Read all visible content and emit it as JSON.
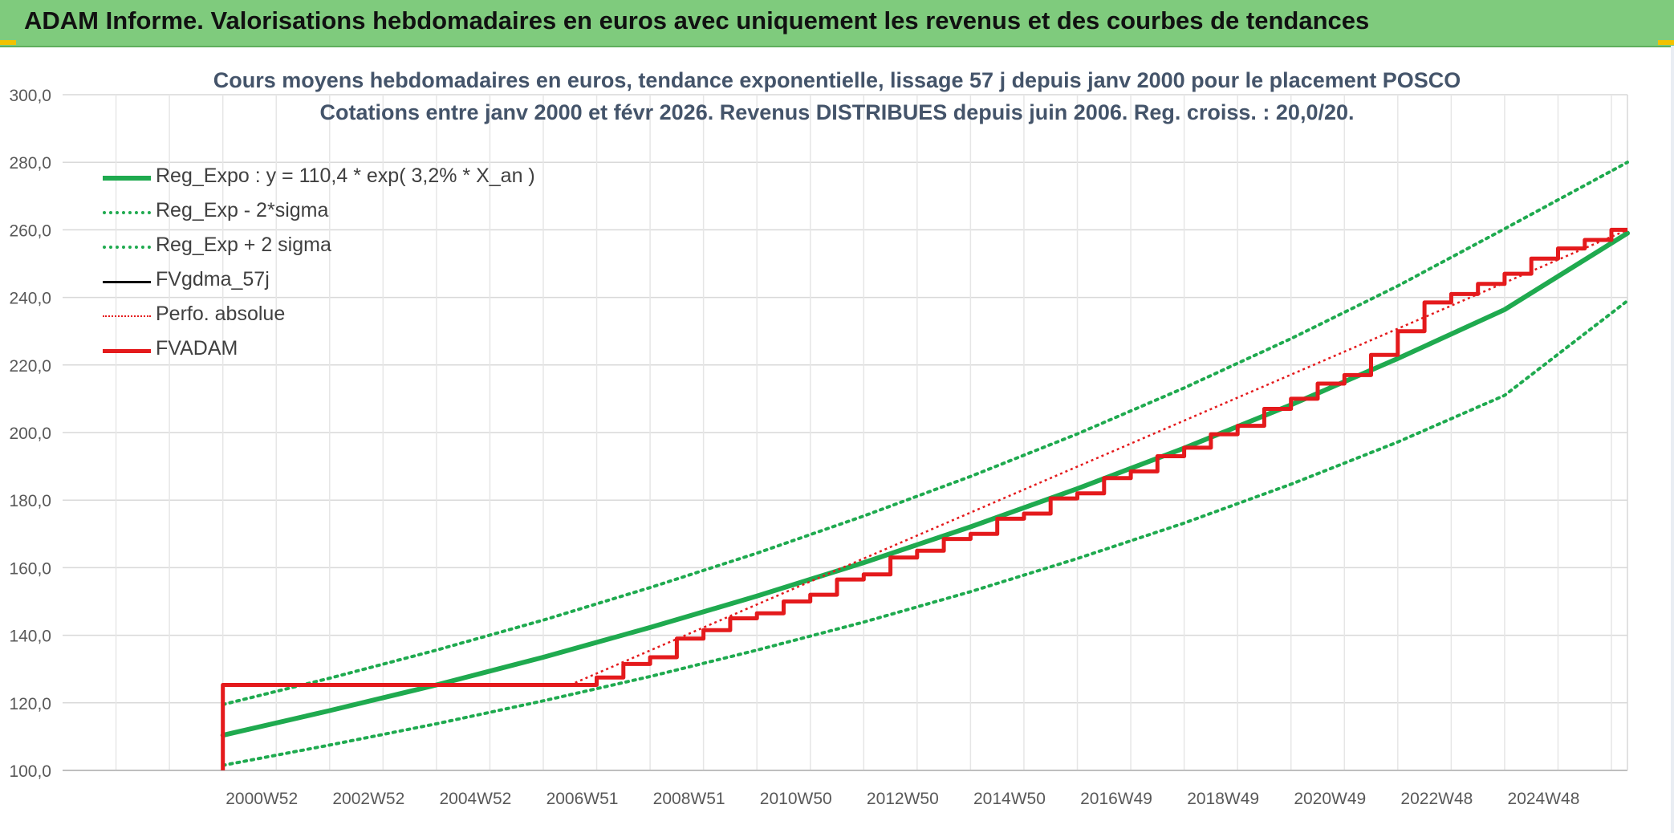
{
  "banner": {
    "title": "ADAM Informe. Valorisations hebdomadaires en euros avec uniquement les revenus et des courbes de tendances"
  },
  "chart_data": {
    "type": "line",
    "title": "Cours moyens hebdomadaires en euros, tendance exponentielle, lissage 57 j depuis janv 2000 pour le placement POSCO",
    "subtitle": "Cotations entre janv 2000 et févr 2026. Revenus DISTRIBUES depuis juin 2006. Reg. croiss. : 20,0/20.",
    "xlabel": "",
    "ylabel": "",
    "ylim": [
      100,
      300
    ],
    "xlim": [
      1997.0,
      2026.3
    ],
    "y_ticks": [
      "100,0",
      "120,0",
      "140,0",
      "160,0",
      "180,0",
      "200,0",
      "220,0",
      "240,0",
      "260,0",
      "280,0",
      "300,0"
    ],
    "x_ticks": [
      {
        "label": "2000W52",
        "x": 2001.0
      },
      {
        "label": "2002W52",
        "x": 2003.0
      },
      {
        "label": "2004W52",
        "x": 2005.0
      },
      {
        "label": "2006W51",
        "x": 2007.0
      },
      {
        "label": "2008W51",
        "x": 2009.0
      },
      {
        "label": "2010W50",
        "x": 2011.0
      },
      {
        "label": "2012W50",
        "x": 2013.0
      },
      {
        "label": "2014W50",
        "x": 2015.0
      },
      {
        "label": "2016W49",
        "x": 2017.0
      },
      {
        "label": "2018W49",
        "x": 2019.0
      },
      {
        "label": "2020W49",
        "x": 2021.0
      },
      {
        "label": "2022W48",
        "x": 2023.0
      },
      {
        "label": "2024W48",
        "x": 2025.0
      }
    ],
    "grid": true,
    "legend_position": "top-left",
    "series": [
      {
        "name": "Reg_Expo : y = 110,4 * exp( 3,2% *  X_an )",
        "color": "#1faa4f",
        "style": "solid",
        "points": [
          [
            2000.0,
            110.4
          ],
          [
            2002.0,
            117.7
          ],
          [
            2004.0,
            125.3
          ],
          [
            2006.0,
            133.5
          ],
          [
            2008.0,
            142.3
          ],
          [
            2010.0,
            151.6
          ],
          [
            2012.0,
            161.5
          ],
          [
            2014.0,
            172.1
          ],
          [
            2016.0,
            183.4
          ],
          [
            2018.0,
            195.4
          ],
          [
            2020.0,
            208.2
          ],
          [
            2022.0,
            221.9
          ],
          [
            2024.0,
            236.4
          ],
          [
            2026.3,
            259.0
          ]
        ]
      },
      {
        "name": "Reg_Exp - 2*sigma",
        "color": "#1faa4f",
        "style": "dotted",
        "points": [
          [
            2000.0,
            101.5
          ],
          [
            2002.0,
            107.5
          ],
          [
            2004.0,
            113.8
          ],
          [
            2006.0,
            120.6
          ],
          [
            2008.0,
            127.8
          ],
          [
            2010.0,
            135.6
          ],
          [
            2012.0,
            143.9
          ],
          [
            2014.0,
            152.9
          ],
          [
            2016.0,
            162.7
          ],
          [
            2018.0,
            173.2
          ],
          [
            2020.0,
            184.7
          ],
          [
            2022.0,
            197.2
          ],
          [
            2024.0,
            211.0
          ],
          [
            2026.3,
            239.0
          ]
        ]
      },
      {
        "name": "Reg_Exp + 2 sigma",
        "color": "#1faa4f",
        "style": "dotted",
        "points": [
          [
            2000.0,
            119.5
          ],
          [
            2002.0,
            127.3
          ],
          [
            2004.0,
            135.6
          ],
          [
            2006.0,
            144.5
          ],
          [
            2008.0,
            154.1
          ],
          [
            2010.0,
            164.3
          ],
          [
            2012.0,
            175.3
          ],
          [
            2014.0,
            187.0
          ],
          [
            2016.0,
            199.6
          ],
          [
            2018.0,
            213.2
          ],
          [
            2020.0,
            227.8
          ],
          [
            2022.0,
            243.4
          ],
          [
            2024.0,
            260.3
          ],
          [
            2026.3,
            280.0
          ]
        ]
      },
      {
        "name": "FVgdma_57j",
        "color": "#000000",
        "style": "solid",
        "points": [
          [
            2000.0,
            100.0
          ],
          [
            2000.0,
            125.3
          ],
          [
            2006.5,
            125.3
          ],
          [
            2007.0,
            127.5
          ],
          [
            2007.5,
            131.5
          ],
          [
            2008.0,
            133.5
          ],
          [
            2008.5,
            139.0
          ],
          [
            2009.0,
            141.5
          ],
          [
            2009.5,
            145.0
          ],
          [
            2010.0,
            146.5
          ],
          [
            2010.5,
            150.0
          ],
          [
            2011.0,
            152.0
          ],
          [
            2011.5,
            156.5
          ],
          [
            2012.0,
            158.0
          ],
          [
            2012.5,
            163.0
          ],
          [
            2013.0,
            165.0
          ],
          [
            2013.5,
            168.5
          ],
          [
            2014.0,
            170.0
          ],
          [
            2014.5,
            174.5
          ],
          [
            2015.0,
            176.0
          ],
          [
            2015.5,
            180.5
          ],
          [
            2016.0,
            182.0
          ],
          [
            2016.5,
            186.5
          ],
          [
            2017.0,
            188.5
          ],
          [
            2017.5,
            193.0
          ],
          [
            2018.0,
            195.5
          ],
          [
            2018.5,
            199.5
          ],
          [
            2019.0,
            202.0
          ],
          [
            2019.5,
            207.0
          ],
          [
            2020.0,
            210.0
          ],
          [
            2020.5,
            214.5
          ],
          [
            2021.0,
            217.0
          ],
          [
            2021.5,
            223.0
          ],
          [
            2022.0,
            230.0
          ],
          [
            2022.5,
            238.5
          ],
          [
            2023.0,
            241.0
          ],
          [
            2023.5,
            244.0
          ],
          [
            2024.0,
            247.0
          ],
          [
            2024.5,
            251.5
          ],
          [
            2025.0,
            254.5
          ],
          [
            2025.5,
            257.0
          ],
          [
            2026.0,
            260.0
          ],
          [
            2026.3,
            260.0
          ]
        ]
      },
      {
        "name": "Perfo. absolue",
        "color": "#e41a1c",
        "style": "dotted",
        "points": [
          [
            2000.0,
            100.0
          ],
          [
            2000.0,
            125.3
          ],
          [
            2006.5,
            125.3
          ],
          [
            2026.3,
            260.0
          ]
        ]
      },
      {
        "name": "FVADAM",
        "color": "#e41a1c",
        "style": "solid",
        "points": [
          [
            2000.0,
            100.0
          ],
          [
            2000.0,
            125.3
          ],
          [
            2006.5,
            125.3
          ],
          [
            2007.0,
            127.5
          ],
          [
            2007.5,
            131.5
          ],
          [
            2008.0,
            133.5
          ],
          [
            2008.5,
            139.0
          ],
          [
            2009.0,
            141.5
          ],
          [
            2009.5,
            145.0
          ],
          [
            2010.0,
            146.5
          ],
          [
            2010.5,
            150.0
          ],
          [
            2011.0,
            152.0
          ],
          [
            2011.5,
            156.5
          ],
          [
            2012.0,
            158.0
          ],
          [
            2012.5,
            163.0
          ],
          [
            2013.0,
            165.0
          ],
          [
            2013.5,
            168.5
          ],
          [
            2014.0,
            170.0
          ],
          [
            2014.5,
            174.5
          ],
          [
            2015.0,
            176.0
          ],
          [
            2015.5,
            180.5
          ],
          [
            2016.0,
            182.0
          ],
          [
            2016.5,
            186.5
          ],
          [
            2017.0,
            188.5
          ],
          [
            2017.5,
            193.0
          ],
          [
            2018.0,
            195.5
          ],
          [
            2018.5,
            199.5
          ],
          [
            2019.0,
            202.0
          ],
          [
            2019.5,
            207.0
          ],
          [
            2020.0,
            210.0
          ],
          [
            2020.5,
            214.5
          ],
          [
            2021.0,
            217.0
          ],
          [
            2021.5,
            223.0
          ],
          [
            2022.0,
            230.0
          ],
          [
            2022.5,
            238.5
          ],
          [
            2023.0,
            241.0
          ],
          [
            2023.5,
            244.0
          ],
          [
            2024.0,
            247.0
          ],
          [
            2024.5,
            251.5
          ],
          [
            2025.0,
            254.5
          ],
          [
            2025.5,
            257.0
          ],
          [
            2026.0,
            260.0
          ],
          [
            2026.3,
            260.0
          ]
        ]
      }
    ]
  }
}
